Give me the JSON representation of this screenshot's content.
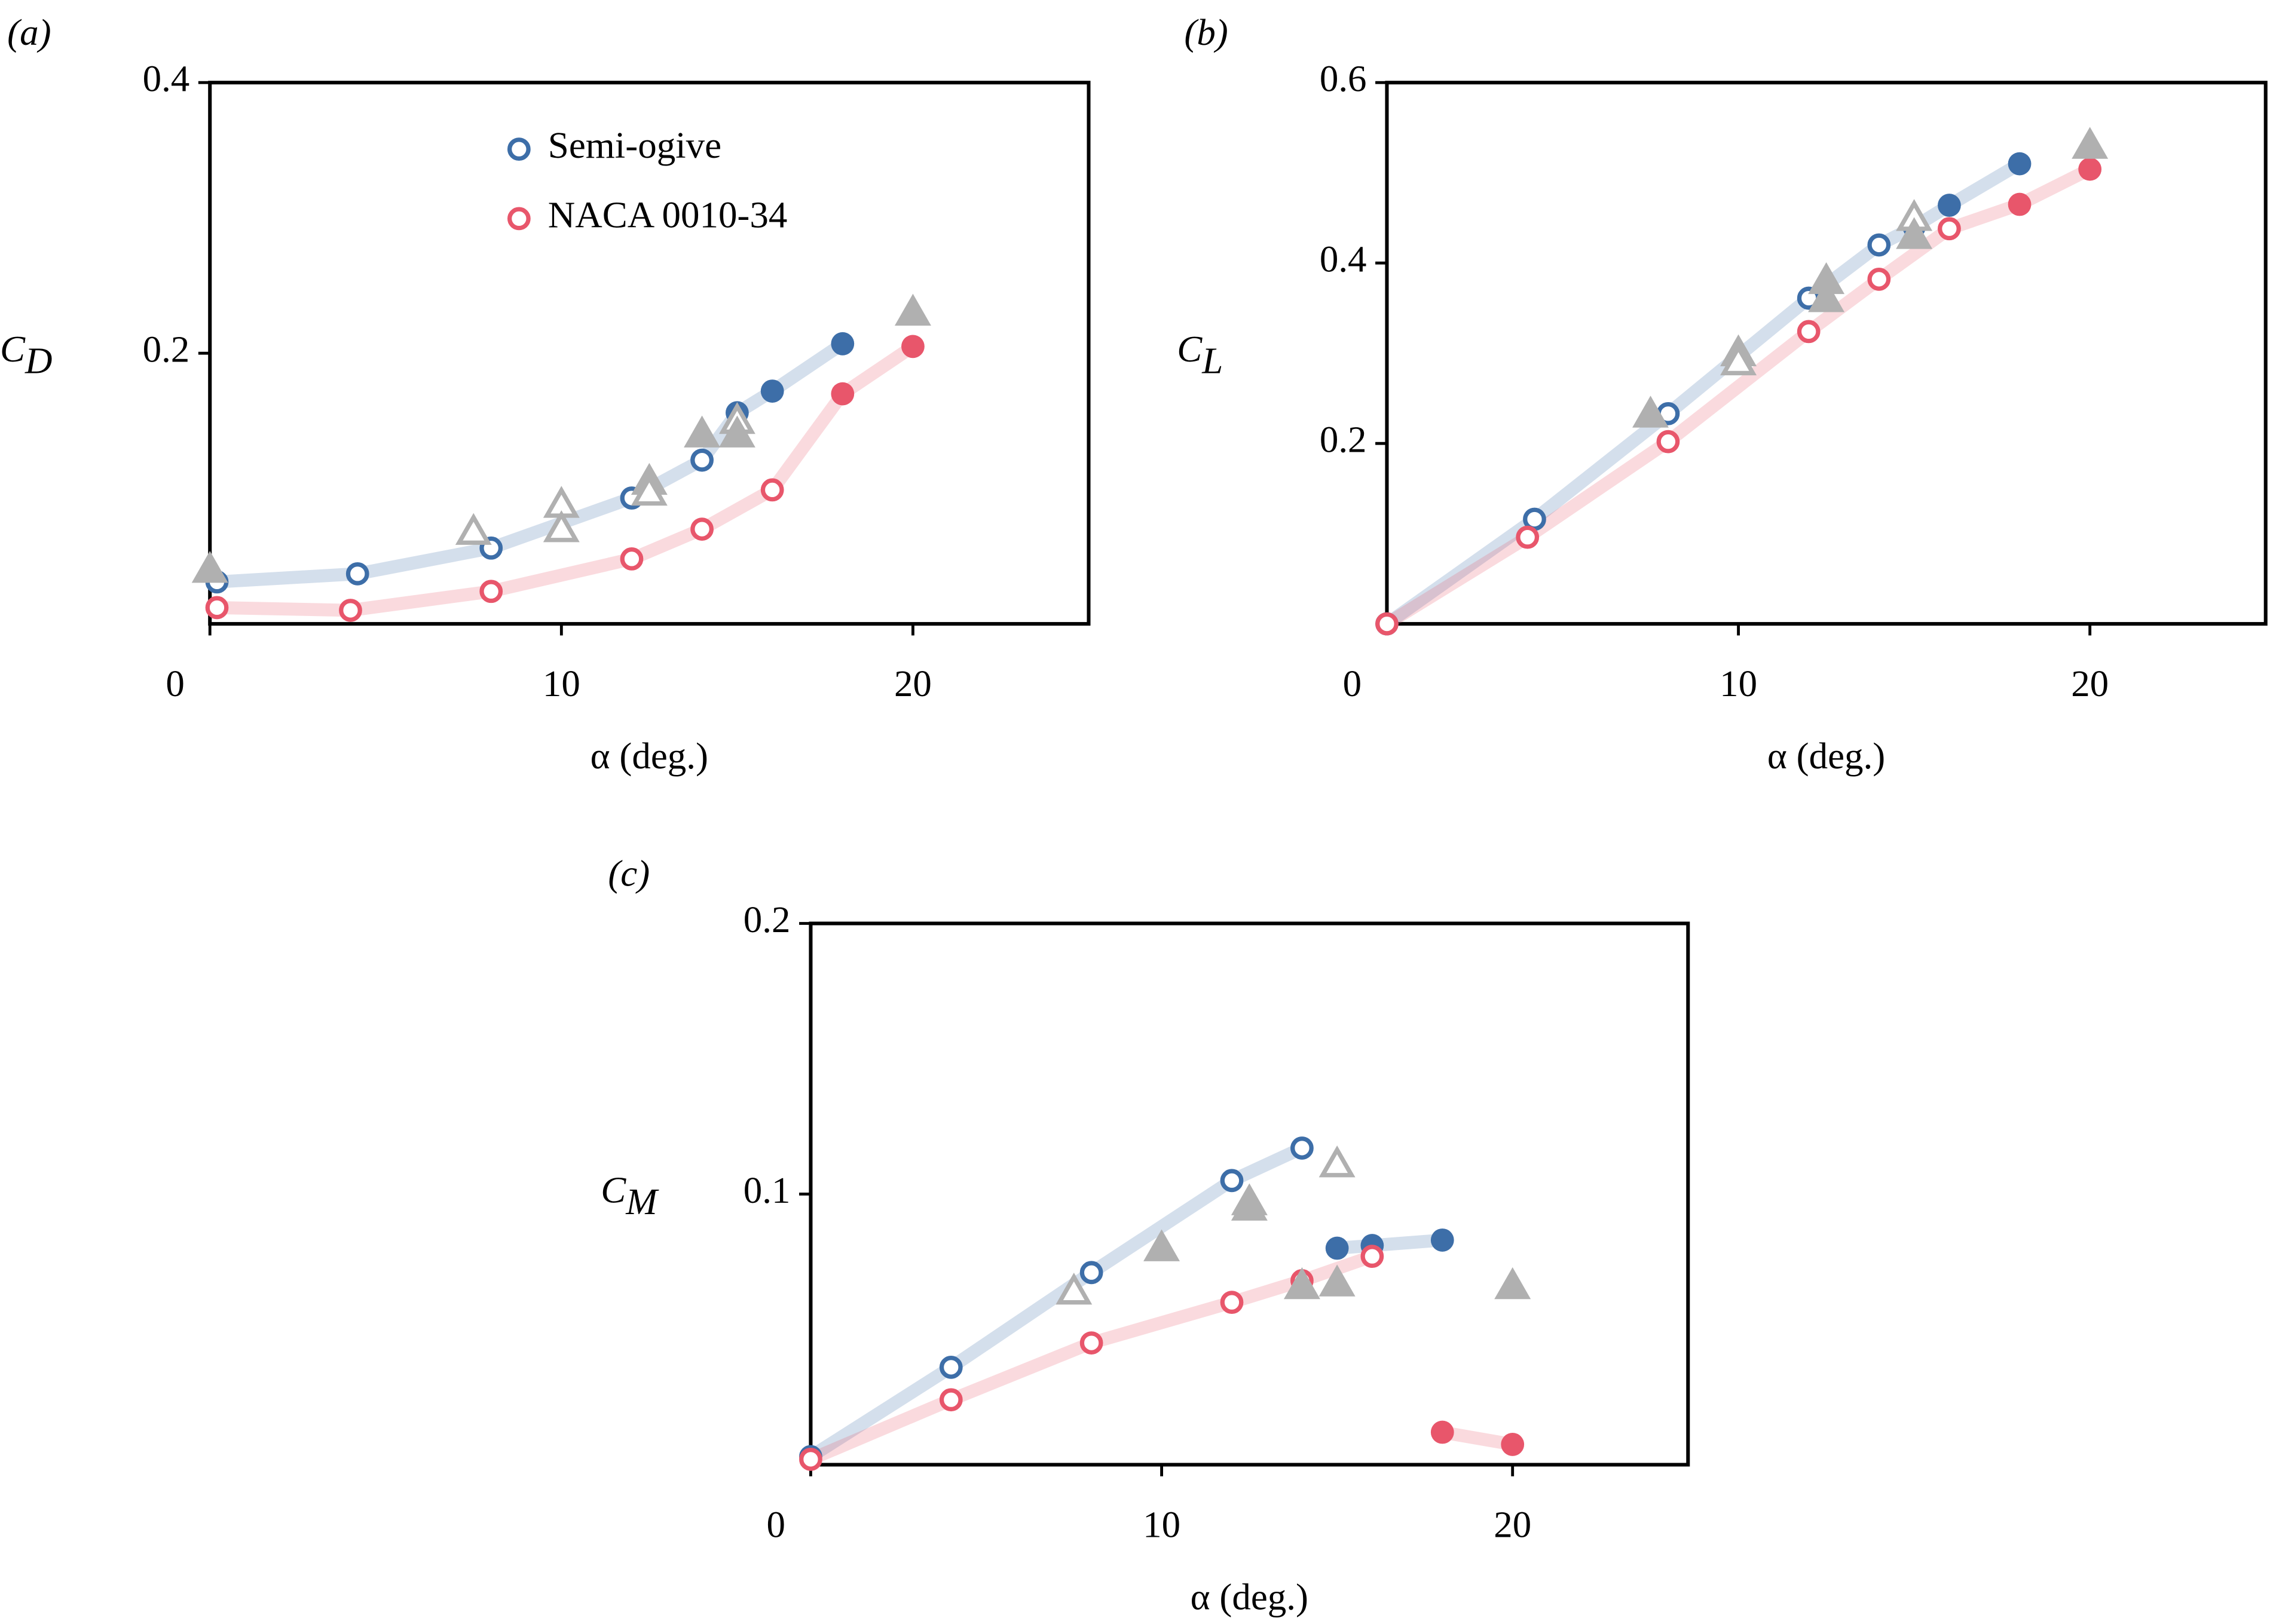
{
  "chart_data": [
    {
      "type": "scatter",
      "panel": "(a)",
      "xlabel": "α (deg.)",
      "ylabel": {
        "text": "C",
        "subscript": "D"
      },
      "xlim": [
        0,
        25
      ],
      "ylim": [
        0,
        0.4
      ],
      "xticks": [
        0,
        10,
        20
      ],
      "yticks": [
        0.2,
        0.4
      ],
      "legend": "upper center",
      "series": [
        {
          "name": "Semi-ogive",
          "color": "#3d6ea8",
          "marker": "circle",
          "line": true,
          "x": [
            0.2,
            4.2,
            8,
            12,
            14,
            15,
            16,
            18
          ],
          "values": [
            0.031,
            0.037,
            0.056,
            0.093,
            0.121,
            0.156,
            0.172,
            0.207
          ],
          "filled": [
            false,
            false,
            false,
            false,
            false,
            true,
            true,
            true
          ]
        },
        {
          "name": "NACA 0010-34",
          "color": "#e8566b",
          "marker": "circle",
          "line": true,
          "x": [
            0.2,
            4,
            8,
            12,
            14,
            16,
            18,
            20
          ],
          "values": [
            0.012,
            0.01,
            0.024,
            0.048,
            0.07,
            0.099,
            0.17,
            0.205
          ],
          "filled": [
            false,
            false,
            false,
            false,
            false,
            false,
            true,
            true
          ]
        },
        {
          "color": "#b0b0b0",
          "marker": "triangle",
          "line": false,
          "x": [
            0,
            7.5,
            10,
            10,
            12.5,
            12.5,
            14,
            15,
            15,
            20
          ],
          "values": [
            0.04,
            0.068,
            0.088,
            0.07,
            0.105,
            0.097,
            0.14,
            0.15,
            0.14,
            0.23
          ],
          "filled": [
            true,
            false,
            false,
            false,
            true,
            false,
            true,
            false,
            true,
            true
          ]
        }
      ]
    },
    {
      "type": "scatter",
      "panel": "(b)",
      "xlabel": "α (deg.)",
      "ylabel": {
        "text": "C",
        "subscript": "L"
      },
      "xlim": [
        0,
        25
      ],
      "ylim": [
        0,
        0.6
      ],
      "xticks": [
        0,
        10,
        20
      ],
      "yticks": [
        0.2,
        0.4,
        0.6
      ],
      "series": [
        {
          "color": "#3d6ea8",
          "marker": "circle",
          "line": true,
          "x": [
            0,
            4.2,
            8,
            12,
            14,
            15,
            16,
            18
          ],
          "values": [
            0,
            0.116,
            0.233,
            0.361,
            0.42,
            0.44,
            0.464,
            0.51
          ],
          "filled": [
            false,
            false,
            false,
            false,
            false,
            true,
            true,
            true
          ]
        },
        {
          "color": "#e8566b",
          "marker": "circle",
          "line": true,
          "x": [
            0,
            4,
            8,
            12,
            14,
            16,
            18,
            20
          ],
          "values": [
            0,
            0.096,
            0.202,
            0.324,
            0.382,
            0.438,
            0.465,
            0.504
          ],
          "filled": [
            false,
            false,
            false,
            false,
            false,
            false,
            true,
            true
          ]
        },
        {
          "color": "#b0b0b0",
          "marker": "triangle",
          "line": false,
          "x": [
            7.5,
            10,
            10,
            12.5,
            12.5,
            15,
            15,
            20
          ],
          "values": [
            0.232,
            0.3,
            0.29,
            0.38,
            0.36,
            0.45,
            0.43,
            0.53
          ],
          "filled": [
            true,
            true,
            false,
            true,
            true,
            false,
            true,
            true
          ]
        }
      ]
    },
    {
      "type": "scatter",
      "panel": "(c)",
      "xlabel": "α (deg.)",
      "ylabel": {
        "text": "C",
        "subscript": "M"
      },
      "xlim": [
        0,
        25
      ],
      "ylim": [
        0,
        0.2
      ],
      "xticks": [
        0,
        10,
        20
      ],
      "yticks": [
        0.1,
        0.2
      ],
      "series": [
        {
          "color": "#3d6ea8",
          "marker": "circle",
          "line": true,
          "x": [
            0,
            4,
            8,
            12,
            14
          ],
          "values": [
            0.003,
            0.036,
            0.071,
            0.105,
            0.117
          ],
          "filled": [
            false,
            false,
            false,
            false,
            false
          ]
        },
        {
          "color": "#3d6ea8",
          "marker": "circle",
          "line": true,
          "x": [
            15,
            16,
            18
          ],
          "values": [
            0.08,
            0.081,
            0.083
          ],
          "filled": [
            true,
            true,
            true
          ]
        },
        {
          "color": "#e8566b",
          "marker": "circle",
          "line": true,
          "x": [
            0,
            4,
            8,
            12,
            14,
            16
          ],
          "values": [
            0.002,
            0.024,
            0.045,
            0.06,
            0.068,
            0.077
          ],
          "filled": [
            false,
            false,
            false,
            false,
            false,
            false
          ]
        },
        {
          "color": "#e8566b",
          "marker": "circle",
          "line": true,
          "x": [
            18,
            20
          ],
          "values": [
            0.012,
            0.0075
          ],
          "filled": [
            true,
            true
          ]
        },
        {
          "color": "#b0b0b0",
          "marker": "triangle",
          "line": false,
          "x": [
            7.5,
            10,
            12.5,
            12.5,
            14,
            15,
            15,
            20
          ],
          "values": [
            0.064,
            0.08,
            0.097,
            0.095,
            0.066,
            0.111,
            0.067,
            0.066
          ],
          "filled": [
            false,
            true,
            true,
            true,
            true,
            false,
            true,
            true
          ]
        }
      ]
    }
  ]
}
